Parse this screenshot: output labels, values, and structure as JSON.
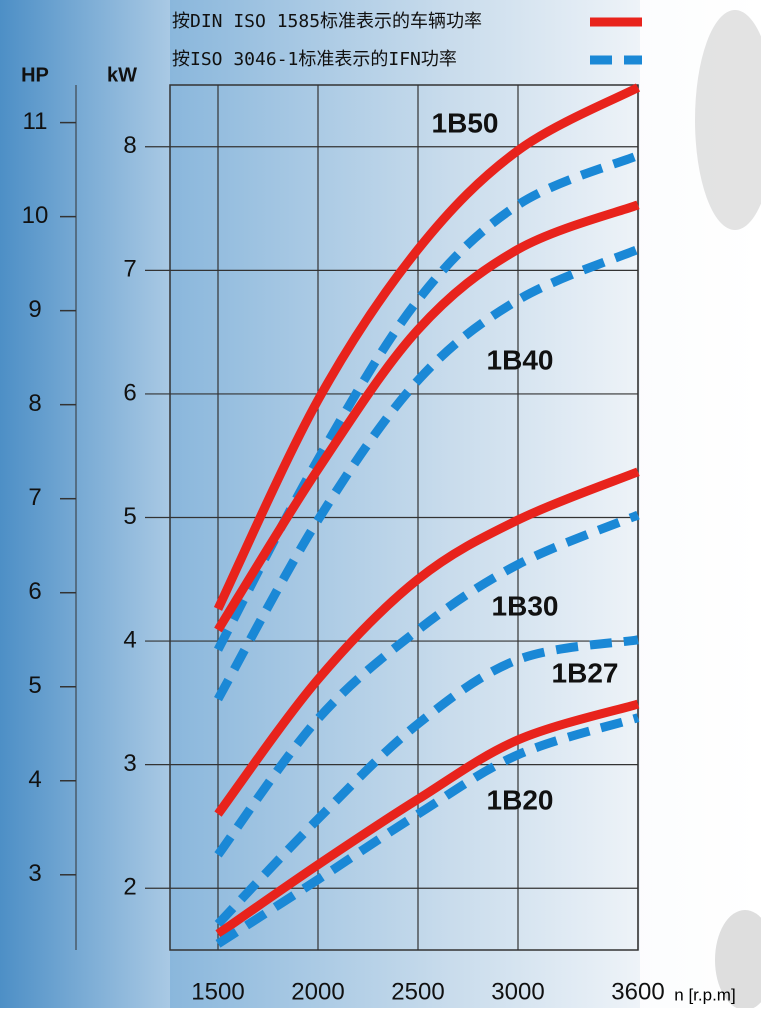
{
  "chart_data": {
    "type": "line",
    "x_label": "n [r.p.m]",
    "y_label": "kW",
    "y2_label": "HP",
    "x": [
      1500,
      2000,
      2500,
      3000,
      3600
    ],
    "xlim": [
      1500,
      3600
    ],
    "xticks": [
      1500,
      2000,
      2500,
      3000,
      3600
    ],
    "ylim": [
      1.5,
      8.5
    ],
    "yticks": [
      2,
      3,
      4,
      5,
      6,
      7,
      8
    ],
    "y2lim": [
      2.2,
      11.4
    ],
    "y2ticks": [
      3,
      4,
      5,
      6,
      7,
      8,
      9,
      10,
      11
    ],
    "grid": true,
    "standards": [
      {
        "name": "按DIN ISO 1585标准表示的车辆功率",
        "color": "#e8231c",
        "dashed": false
      },
      {
        "name": "按ISO 3046-1标准表示的IFN功率",
        "color": "#1a88d6",
        "dashed": true
      }
    ],
    "models": [
      {
        "name": "1B50",
        "din": [
          4.26,
          5.95,
          7.17,
          7.97,
          8.48
        ],
        "iso": [
          3.93,
          5.47,
          6.76,
          7.53,
          7.93
        ]
      },
      {
        "name": "1B40",
        "din": [
          4.09,
          5.39,
          6.52,
          7.17,
          7.53
        ],
        "iso": [
          3.53,
          4.98,
          6.11,
          6.76,
          7.17
        ]
      },
      {
        "name": "1B30",
        "din": [
          2.6,
          3.69,
          4.5,
          4.98,
          5.37
        ],
        "iso": [
          2.27,
          3.37,
          4.09,
          4.62,
          5.02
        ]
      },
      {
        "name": "1B27",
        "iso": [
          1.71,
          2.56,
          3.33,
          3.85,
          4.01
        ]
      },
      {
        "name": "1B20",
        "din": [
          1.63,
          2.19,
          2.72,
          3.2,
          3.49
        ],
        "iso": [
          1.55,
          2.07,
          2.6,
          3.08,
          3.38
        ]
      }
    ]
  }
}
